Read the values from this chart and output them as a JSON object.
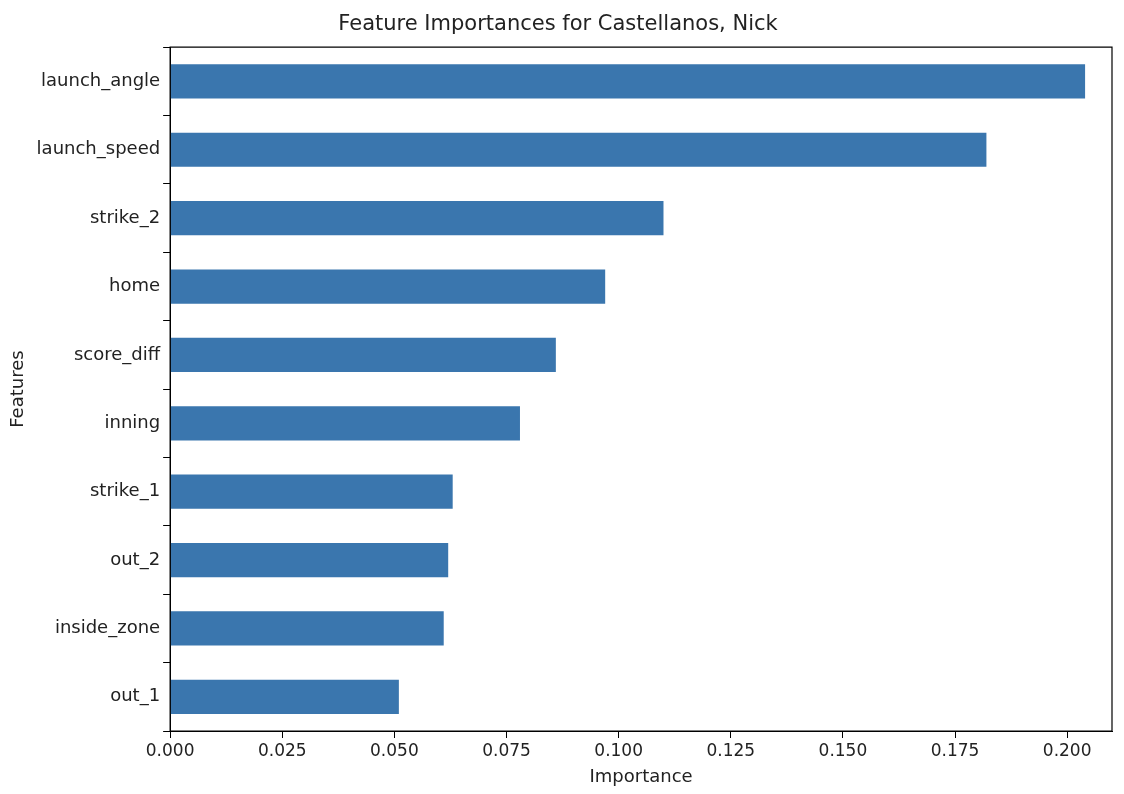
{
  "chart_data": {
    "type": "bar",
    "orientation": "horizontal",
    "title": "Feature Importances for Castellanos, Nick",
    "xlabel": "Importance",
    "ylabel": "Features",
    "categories": [
      "launch_angle",
      "launch_speed",
      "strike_2",
      "home",
      "score_diff",
      "inning",
      "strike_1",
      "out_2",
      "inside_zone",
      "out_1"
    ],
    "values": [
      0.204,
      0.182,
      0.11,
      0.097,
      0.086,
      0.078,
      0.063,
      0.062,
      0.061,
      0.051
    ],
    "color": "#3a76ae",
    "xlim": [
      0,
      0.21
    ],
    "xticks": [
      {
        "value": 0,
        "label": "0.000"
      },
      {
        "value": 0.025,
        "label": "0.025"
      },
      {
        "value": 0.05,
        "label": "0.050"
      },
      {
        "value": 0.075,
        "label": "0.075"
      },
      {
        "value": 0.1,
        "label": "0.100"
      },
      {
        "value": 0.125,
        "label": "0.125"
      },
      {
        "value": 0.15,
        "label": "0.150"
      },
      {
        "value": 0.175,
        "label": "0.175"
      },
      {
        "value": 0.2,
        "label": "0.200"
      }
    ],
    "grid": false,
    "legend": false
  }
}
